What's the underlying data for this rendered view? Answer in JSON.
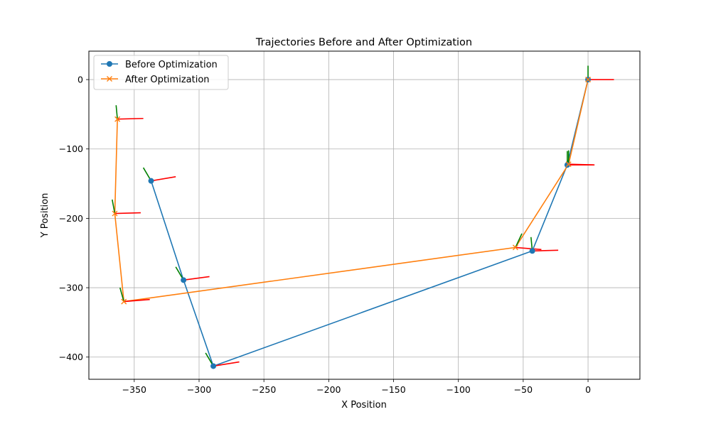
{
  "chart_data": {
    "type": "line",
    "title": "Trajectories Before and After Optimization",
    "xlabel": "X Position",
    "ylabel": "Y Position",
    "xlim": [
      -385,
      40
    ],
    "ylim": [
      -432,
      41
    ],
    "xticks": [
      -350,
      -300,
      -250,
      -200,
      -150,
      -100,
      -50,
      0
    ],
    "yticks": [
      0,
      -100,
      -200,
      -300,
      -400
    ],
    "xtick_labels": [
      "−350",
      "−300",
      "−250",
      "−200",
      "−150",
      "−100",
      "−50",
      "0"
    ],
    "ytick_labels": [
      "0",
      "−100",
      "−200",
      "−300",
      "−400"
    ],
    "grid": true,
    "legend_position": "top-left",
    "series": [
      {
        "name": "Before Optimization",
        "color": "#1f77b4",
        "marker": "circle",
        "points": [
          [
            0,
            0
          ],
          [
            -16,
            -123
          ],
          [
            -43,
            -247
          ],
          [
            -289,
            -413
          ],
          [
            -312,
            -289
          ],
          [
            -337,
            -146
          ]
        ]
      },
      {
        "name": "After Optimization",
        "color": "#ff7f0e",
        "marker": "x",
        "points": [
          [
            0,
            0
          ],
          [
            -15,
            -122
          ],
          [
            -56,
            -242
          ],
          [
            -358,
            -320
          ],
          [
            -365,
            -193
          ],
          [
            -363,
            -57
          ]
        ]
      }
    ],
    "orientation_axes": {
      "x_axis_color": "#ff0000",
      "y_axis_color": "#008000",
      "poses": [
        {
          "x": 0,
          "y": 0,
          "x_end": [
            20,
            0
          ],
          "y_end": [
            0,
            20
          ]
        },
        {
          "x": -16,
          "y": -123,
          "x_end": [
            4,
            -123
          ],
          "y_end": [
            -16,
            -103
          ]
        },
        {
          "x": -43,
          "y": -247,
          "x_end": [
            -23,
            -246
          ],
          "y_end": [
            -44,
            -227
          ]
        },
        {
          "x": -289,
          "y": -413,
          "x_end": [
            -269,
            -407
          ],
          "y_end": [
            -295,
            -394
          ]
        },
        {
          "x": -312,
          "y": -289,
          "x_end": [
            -292,
            -284
          ],
          "y_end": [
            -318,
            -270
          ]
        },
        {
          "x": -337,
          "y": -146,
          "x_end": [
            -318,
            -140
          ],
          "y_end": [
            -343,
            -127
          ]
        },
        {
          "x": -15,
          "y": -122,
          "x_end": [
            5,
            -123
          ],
          "y_end": [
            -15,
            -102
          ]
        },
        {
          "x": -56,
          "y": -242,
          "x_end": [
            -36,
            -245
          ],
          "y_end": [
            -51,
            -222
          ]
        },
        {
          "x": -358,
          "y": -320,
          "x_end": [
            -338,
            -317
          ],
          "y_end": [
            -361,
            -300
          ]
        },
        {
          "x": -365,
          "y": -193,
          "x_end": [
            -345,
            -192
          ],
          "y_end": [
            -367,
            -173
          ]
        },
        {
          "x": -363,
          "y": -57,
          "x_end": [
            -343,
            -56
          ],
          "y_end": [
            -364,
            -37
          ]
        }
      ]
    }
  }
}
